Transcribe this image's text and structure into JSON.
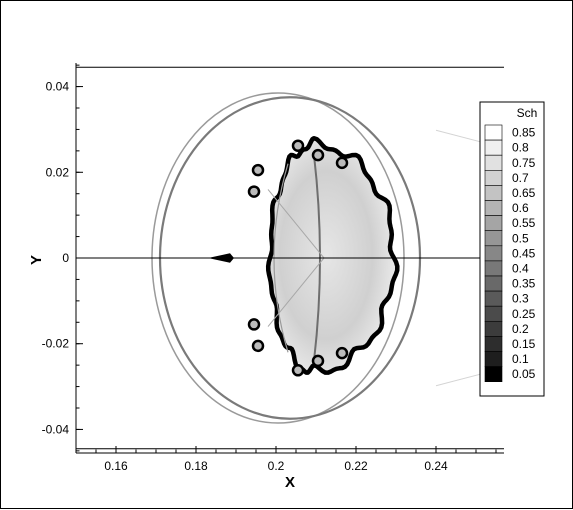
{
  "chart_data": {
    "type": "heatmap",
    "xlabel": "X",
    "ylabel": "Y",
    "xlim": [
      0.15,
      0.257
    ],
    "ylim": [
      -0.0455,
      0.0455
    ],
    "x_ticks": [
      {
        "value": 0.16,
        "label": "0.16"
      },
      {
        "value": 0.18,
        "label": "0.18"
      },
      {
        "value": 0.2,
        "label": "0.2"
      },
      {
        "value": 0.22,
        "label": "0.22"
      },
      {
        "value": 0.24,
        "label": "0.24"
      }
    ],
    "y_ticks": [
      {
        "value": 0.04,
        "label": "0.04"
      },
      {
        "value": 0.02,
        "label": "0.02"
      },
      {
        "value": 0,
        "label": "0"
      },
      {
        "value": -0.02,
        "label": "-0.02"
      },
      {
        "value": -0.04,
        "label": "-0.04"
      }
    ],
    "reference_lines_y": [
      0.0445,
      0,
      -0.0445
    ],
    "legend": {
      "title": "Sch",
      "position": "right",
      "levels": [
        0.85,
        0.8,
        0.75,
        0.7,
        0.65,
        0.6,
        0.55,
        0.5,
        0.45,
        0.4,
        0.35,
        0.3,
        0.25,
        0.2,
        0.15,
        0.1,
        0.05
      ],
      "labels": [
        "0.85",
        "0.8",
        "0.75",
        "0.7",
        "0.65",
        "0.6",
        "0.55",
        "0.5",
        "0.45",
        "0.4",
        "0.35",
        "0.3",
        "0.25",
        "0.2",
        "0.15",
        "0.1",
        "0.05"
      ],
      "colors": [
        "#ffffff",
        "#f0f0f0",
        "#e1e1e1",
        "#d2d2d2",
        "#c3c3c3",
        "#b4b4b4",
        "#a5a5a5",
        "#969696",
        "#878787",
        "#787878",
        "#696969",
        "#5a5a5a",
        "#4b4b4b",
        "#3c3c3c",
        "#2d2d2d",
        "#1e1e1e",
        "#000000"
      ]
    },
    "features": {
      "bow_shock": {
        "center_x": 0.2005,
        "radius_x": 0.0315,
        "radius_y": 0.0385,
        "color": "#9a9a9a"
      },
      "inner_shock": {
        "center_x": 0.2035,
        "radius_x": 0.0325,
        "radius_y": 0.0375,
        "color": "#7a7a7a"
      },
      "bubble": {
        "x_min": 0.188,
        "x_max": 0.228,
        "y_extent": 0.0265,
        "color": "#000000"
      }
    }
  }
}
